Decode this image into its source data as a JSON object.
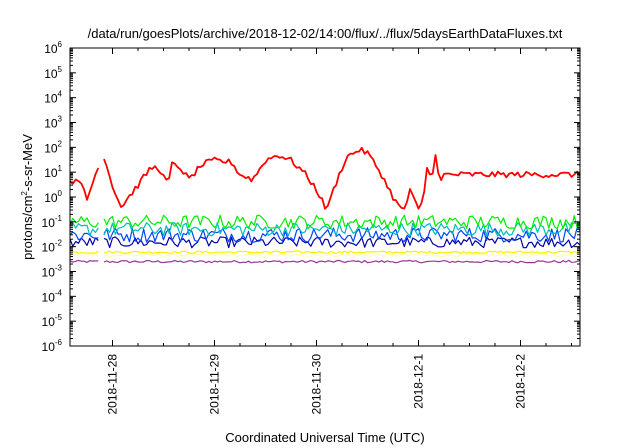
{
  "chart_data": {
    "type": "line",
    "title": "/data/run/goesPlots/archive/2018-12-02/14:00/flux/../flux/5daysEarthDataFluxes.txt",
    "xlabel": "Coordinated Universal Time (UTC)",
    "ylabel": {
      "base": "protons/cm",
      "sup": "2",
      "rest": "-s-sr-MeV"
    },
    "yscale": "log",
    "ylim_exponents": [
      -6,
      6
    ],
    "ytick_base": "10",
    "ytick_exponents": [
      "-6",
      "-5",
      "-4",
      "-3",
      "-2",
      "-1",
      "0",
      "1",
      "2",
      "3",
      "4",
      "5",
      "6"
    ],
    "xlim": [
      "2018-11-27T14:00",
      "2018-12-02T14:00"
    ],
    "xtick_labels": [
      "2018-11-28",
      "2018-11-29",
      "2018-11-30",
      "2018-12-1",
      "2018-12-2"
    ],
    "xtick_positions": [
      "2018-11-28T00:00",
      "2018-11-29T00:00",
      "2018-11-30T00:00",
      "2018-12-01T00:00",
      "2018-12-02T00:00"
    ],
    "grid": false,
    "legend": "none",
    "data_gap": [
      "2018-11-27T21:00",
      "2018-11-27T22:00"
    ],
    "series": [
      {
        "color": "#ff0000",
        "noise_log10": 0.12,
        "points": [
          [
            "2018-11-27T14:00",
            5
          ],
          [
            "2018-11-27T17:00",
            3
          ],
          [
            "2018-11-27T18:00",
            0.8
          ],
          [
            "2018-11-27T20:00",
            8
          ],
          [
            "2018-11-27T21:00",
            30
          ],
          [
            "2018-11-27T22:00",
            40
          ],
          [
            "2018-11-28T00:00",
            3
          ],
          [
            "2018-11-28T02:00",
            0.4
          ],
          [
            "2018-11-28T06:00",
            3
          ],
          [
            "2018-11-28T09:00",
            15
          ],
          [
            "2018-11-28T11:00",
            15
          ],
          [
            "2018-11-28T13:00",
            3
          ],
          [
            "2018-11-28T14:00",
            20
          ],
          [
            "2018-11-28T16:00",
            15
          ],
          [
            "2018-11-28T18:00",
            5
          ],
          [
            "2018-11-28T21:00",
            20
          ],
          [
            "2018-11-29T00:00",
            30
          ],
          [
            "2018-11-29T04:00",
            25
          ],
          [
            "2018-11-29T06:00",
            8
          ],
          [
            "2018-11-29T09:00",
            5
          ],
          [
            "2018-11-29T12:00",
            30
          ],
          [
            "2018-11-29T15:00",
            50
          ],
          [
            "2018-11-29T18:00",
            30
          ],
          [
            "2018-11-29T21:00",
            10
          ],
          [
            "2018-11-30T00:00",
            2
          ],
          [
            "2018-11-30T02:00",
            0.4
          ],
          [
            "2018-11-30T03:00",
            0.5
          ],
          [
            "2018-11-30T04:00",
            2
          ],
          [
            "2018-11-30T07:00",
            40
          ],
          [
            "2018-11-30T10:00",
            80
          ],
          [
            "2018-11-30T12:00",
            60
          ],
          [
            "2018-11-30T15:00",
            10
          ],
          [
            "2018-11-30T18:00",
            1
          ],
          [
            "2018-11-30T20:00",
            0.3
          ],
          [
            "2018-11-30T21:00",
            0.4
          ],
          [
            "2018-11-30T22:00",
            2
          ],
          [
            "2018-11-30T23:00",
            0.7
          ],
          [
            "2018-12-01T00:00",
            0.3
          ],
          [
            "2018-12-01T01:00",
            0.6
          ],
          [
            "2018-12-01T02:00",
            15
          ],
          [
            "2018-12-01T03:00",
            5
          ],
          [
            "2018-12-01T04:00",
            60
          ],
          [
            "2018-12-01T05:00",
            3
          ],
          [
            "2018-12-01T06:00",
            8
          ]
        ]
      },
      {
        "color": "#00ee00",
        "noise_log10": 0.28,
        "points": [
          [
            "2018-11-27T14:00",
            0.1
          ],
          [
            "2018-12-02T14:00",
            0.1
          ]
        ]
      },
      {
        "color": "#00bbbb",
        "noise_log10": 0.28,
        "points": [
          [
            "2018-11-27T14:00",
            0.05
          ],
          [
            "2018-12-02T14:00",
            0.05
          ]
        ]
      },
      {
        "color": "#0044ff",
        "noise_log10": 0.3,
        "points": [
          [
            "2018-11-27T14:00",
            0.03
          ],
          [
            "2018-12-02T14:00",
            0.03
          ]
        ]
      },
      {
        "color": "#0000aa",
        "noise_log10": 0.22,
        "points": [
          [
            "2018-11-27T14:00",
            0.015
          ],
          [
            "2018-12-02T14:00",
            0.015
          ]
        ]
      },
      {
        "color": "#ffee00",
        "noise_log10": 0.05,
        "points": [
          [
            "2018-11-27T14:00",
            0.006
          ],
          [
            "2018-12-02T14:00",
            0.006
          ]
        ]
      },
      {
        "color": "#ffffaa",
        "noise_log10": 0.05,
        "points": [
          [
            "2018-11-27T14:00",
            0.0045
          ],
          [
            "2018-12-02T14:00",
            0.0045
          ]
        ]
      },
      {
        "color": "#993399",
        "noise_log10": 0.05,
        "points": [
          [
            "2018-11-27T14:00",
            0.0025
          ],
          [
            "2018-12-02T14:00",
            0.0025
          ]
        ]
      }
    ]
  }
}
